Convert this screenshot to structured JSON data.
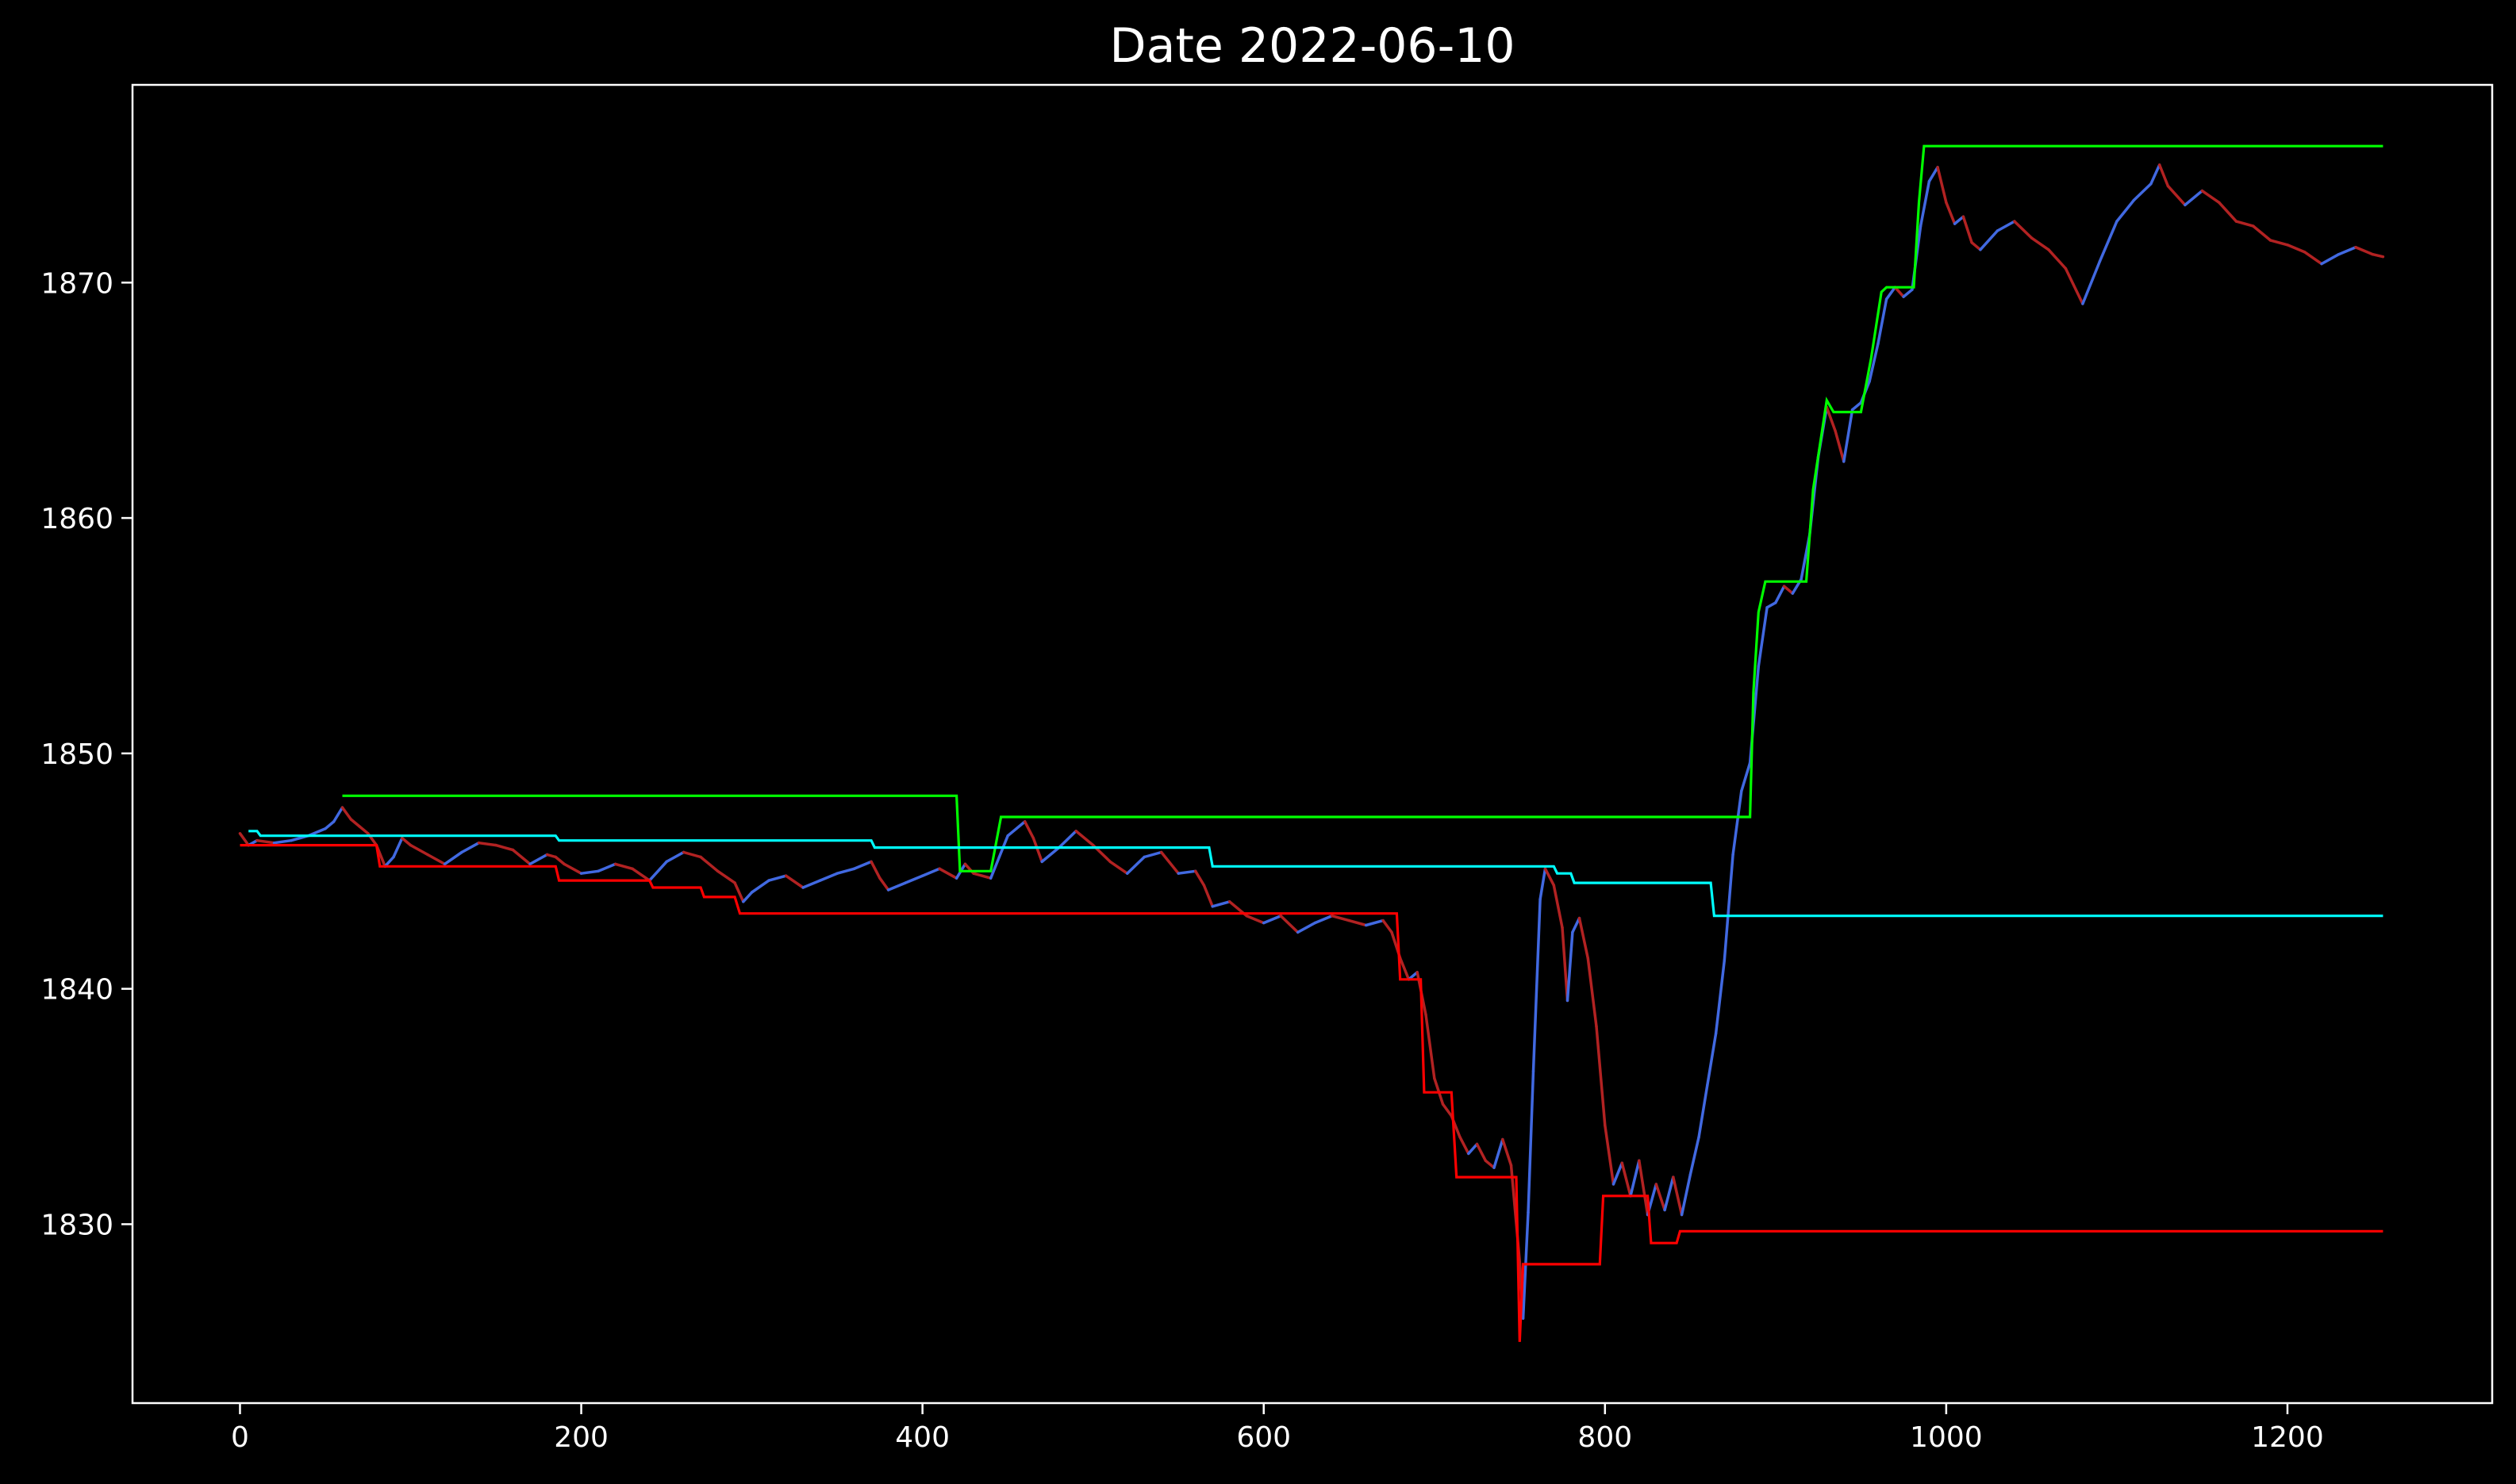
{
  "chart_data": {
    "type": "line",
    "title": "Date 2022-06-10",
    "xlabel": "",
    "ylabel": "",
    "xlim": [
      -63,
      1320
    ],
    "ylim": [
      1822.4,
      1878.4
    ],
    "grid": false,
    "background": "#000000",
    "axis_color": "#ffffff",
    "x_ticks": [
      0,
      200,
      400,
      600,
      800,
      1000,
      1200
    ],
    "y_ticks": [
      1830,
      1840,
      1850,
      1860,
      1870
    ],
    "series": [
      {
        "role": "price",
        "color_up": "#4169e1",
        "color_down": "#b22222",
        "points": [
          [
            0,
            1846.6
          ],
          [
            5,
            1846.1
          ],
          [
            10,
            1846.3
          ],
          [
            20,
            1846.2
          ],
          [
            30,
            1846.3
          ],
          [
            40,
            1846.5
          ],
          [
            50,
            1846.8
          ],
          [
            55,
            1847.1
          ],
          [
            60,
            1847.7
          ],
          [
            65,
            1847.2
          ],
          [
            70,
            1846.9
          ],
          [
            75,
            1846.6
          ],
          [
            80,
            1846.1
          ],
          [
            85,
            1845.2
          ],
          [
            90,
            1845.6
          ],
          [
            95,
            1846.4
          ],
          [
            100,
            1846.1
          ],
          [
            110,
            1845.7
          ],
          [
            120,
            1845.3
          ],
          [
            130,
            1845.8
          ],
          [
            140,
            1846.2
          ],
          [
            150,
            1846.1
          ],
          [
            160,
            1845.9
          ],
          [
            170,
            1845.3
          ],
          [
            180,
            1845.7
          ],
          [
            185,
            1845.6
          ],
          [
            190,
            1845.3
          ],
          [
            200,
            1844.9
          ],
          [
            210,
            1845.0
          ],
          [
            220,
            1845.3
          ],
          [
            230,
            1845.1
          ],
          [
            240,
            1844.6
          ],
          [
            250,
            1845.4
          ],
          [
            260,
            1845.8
          ],
          [
            270,
            1845.6
          ],
          [
            280,
            1845.0
          ],
          [
            290,
            1844.5
          ],
          [
            295,
            1843.7
          ],
          [
            300,
            1844.1
          ],
          [
            310,
            1844.6
          ],
          [
            320,
            1844.8
          ],
          [
            330,
            1844.3
          ],
          [
            340,
            1844.6
          ],
          [
            350,
            1844.9
          ],
          [
            360,
            1845.1
          ],
          [
            370,
            1845.4
          ],
          [
            375,
            1844.7
          ],
          [
            380,
            1844.2
          ],
          [
            390,
            1844.5
          ],
          [
            400,
            1844.8
          ],
          [
            410,
            1845.1
          ],
          [
            420,
            1844.7
          ],
          [
            425,
            1845.3
          ],
          [
            430,
            1844.9
          ],
          [
            440,
            1844.7
          ],
          [
            445,
            1845.6
          ],
          [
            450,
            1846.5
          ],
          [
            460,
            1847.1
          ],
          [
            465,
            1846.4
          ],
          [
            470,
            1845.4
          ],
          [
            480,
            1846.0
          ],
          [
            490,
            1846.7
          ],
          [
            500,
            1846.1
          ],
          [
            510,
            1845.4
          ],
          [
            520,
            1844.9
          ],
          [
            530,
            1845.6
          ],
          [
            540,
            1845.8
          ],
          [
            550,
            1844.9
          ],
          [
            560,
            1845.0
          ],
          [
            565,
            1844.4
          ],
          [
            570,
            1843.5
          ],
          [
            580,
            1843.7
          ],
          [
            590,
            1843.1
          ],
          [
            600,
            1842.8
          ],
          [
            610,
            1843.1
          ],
          [
            620,
            1842.4
          ],
          [
            630,
            1842.8
          ],
          [
            640,
            1843.1
          ],
          [
            650,
            1842.9
          ],
          [
            660,
            1842.7
          ],
          [
            670,
            1842.9
          ],
          [
            675,
            1842.4
          ],
          [
            680,
            1841.3
          ],
          [
            685,
            1840.4
          ],
          [
            690,
            1840.7
          ],
          [
            695,
            1838.9
          ],
          [
            700,
            1836.2
          ],
          [
            705,
            1835.1
          ],
          [
            710,
            1834.6
          ],
          [
            715,
            1833.7
          ],
          [
            720,
            1833.0
          ],
          [
            725,
            1833.4
          ],
          [
            730,
            1832.7
          ],
          [
            735,
            1832.4
          ],
          [
            740,
            1833.6
          ],
          [
            745,
            1832.5
          ],
          [
            750,
            1828.4
          ],
          [
            752,
            1826.0
          ],
          [
            755,
            1830.5
          ],
          [
            758,
            1836.5
          ],
          [
            762,
            1843.8
          ],
          [
            765,
            1845.1
          ],
          [
            770,
            1844.4
          ],
          [
            775,
            1842.6
          ],
          [
            778,
            1839.5
          ],
          [
            781,
            1842.4
          ],
          [
            785,
            1843.0
          ],
          [
            790,
            1841.3
          ],
          [
            795,
            1838.4
          ],
          [
            800,
            1834.2
          ],
          [
            805,
            1831.7
          ],
          [
            810,
            1832.6
          ],
          [
            815,
            1831.2
          ],
          [
            820,
            1832.7
          ],
          [
            825,
            1830.4
          ],
          [
            830,
            1831.7
          ],
          [
            835,
            1830.6
          ],
          [
            840,
            1832.0
          ],
          [
            845,
            1830.4
          ],
          [
            850,
            1832.1
          ],
          [
            855,
            1833.7
          ],
          [
            860,
            1835.9
          ],
          [
            865,
            1838.1
          ],
          [
            870,
            1841.2
          ],
          [
            875,
            1845.7
          ],
          [
            880,
            1848.4
          ],
          [
            885,
            1849.6
          ],
          [
            890,
            1853.7
          ],
          [
            895,
            1856.2
          ],
          [
            900,
            1856.4
          ],
          [
            905,
            1857.1
          ],
          [
            910,
            1856.8
          ],
          [
            915,
            1857.4
          ],
          [
            920,
            1859.3
          ],
          [
            925,
            1862.6
          ],
          [
            930,
            1864.7
          ],
          [
            935,
            1863.7
          ],
          [
            940,
            1862.4
          ],
          [
            945,
            1864.6
          ],
          [
            950,
            1864.9
          ],
          [
            955,
            1865.8
          ],
          [
            960,
            1867.4
          ],
          [
            965,
            1869.3
          ],
          [
            970,
            1869.8
          ],
          [
            975,
            1869.4
          ],
          [
            980,
            1869.7
          ],
          [
            985,
            1872.4
          ],
          [
            990,
            1874.3
          ],
          [
            995,
            1874.9
          ],
          [
            1000,
            1873.4
          ],
          [
            1005,
            1872.5
          ],
          [
            1010,
            1872.8
          ],
          [
            1015,
            1871.7
          ],
          [
            1020,
            1871.4
          ],
          [
            1030,
            1872.2
          ],
          [
            1040,
            1872.6
          ],
          [
            1050,
            1871.9
          ],
          [
            1060,
            1871.4
          ],
          [
            1070,
            1870.6
          ],
          [
            1080,
            1869.1
          ],
          [
            1090,
            1870.9
          ],
          [
            1100,
            1872.6
          ],
          [
            1110,
            1873.5
          ],
          [
            1120,
            1874.2
          ],
          [
            1125,
            1875.0
          ],
          [
            1130,
            1874.1
          ],
          [
            1140,
            1873.3
          ],
          [
            1150,
            1873.9
          ],
          [
            1160,
            1873.4
          ],
          [
            1170,
            1872.6
          ],
          [
            1180,
            1872.4
          ],
          [
            1190,
            1871.8
          ],
          [
            1200,
            1871.6
          ],
          [
            1210,
            1871.3
          ],
          [
            1220,
            1870.8
          ],
          [
            1230,
            1871.2
          ],
          [
            1240,
            1871.5
          ],
          [
            1250,
            1871.2
          ],
          [
            1256,
            1871.1
          ]
        ]
      },
      {
        "role": "running-max",
        "color": "#00ff00",
        "points": [
          [
            60,
            1848.2
          ],
          [
            420,
            1848.2
          ],
          [
            422,
            1845.0
          ],
          [
            440,
            1845.0
          ],
          [
            446,
            1847.3
          ],
          [
            885,
            1847.3
          ],
          [
            887,
            1852.6
          ],
          [
            890,
            1856.0
          ],
          [
            894,
            1857.3
          ],
          [
            918,
            1857.3
          ],
          [
            922,
            1861.2
          ],
          [
            930,
            1865.0
          ],
          [
            934,
            1864.5
          ],
          [
            950,
            1864.5
          ],
          [
            956,
            1866.8
          ],
          [
            962,
            1869.6
          ],
          [
            965,
            1869.8
          ],
          [
            981,
            1869.8
          ],
          [
            984,
            1873.4
          ],
          [
            987,
            1875.8
          ],
          [
            1256,
            1875.8
          ]
        ]
      },
      {
        "role": "running-min",
        "color": "#ff0000",
        "points": [
          [
            0,
            1846.1
          ],
          [
            80,
            1846.1
          ],
          [
            82,
            1845.2
          ],
          [
            185,
            1845.2
          ],
          [
            187,
            1844.6
          ],
          [
            240,
            1844.6
          ],
          [
            242,
            1844.3
          ],
          [
            270,
            1844.3
          ],
          [
            272,
            1843.9
          ],
          [
            290,
            1843.9
          ],
          [
            293,
            1843.2
          ],
          [
            678,
            1843.2
          ],
          [
            680,
            1840.4
          ],
          [
            692,
            1840.4
          ],
          [
            694,
            1835.6
          ],
          [
            710,
            1835.6
          ],
          [
            713,
            1832.0
          ],
          [
            748,
            1832.0
          ],
          [
            750,
            1825.0
          ],
          [
            752,
            1828.3
          ],
          [
            797,
            1828.3
          ],
          [
            799,
            1831.2
          ],
          [
            825,
            1831.2
          ],
          [
            827,
            1829.2
          ],
          [
            842,
            1829.2
          ],
          [
            844,
            1829.7
          ],
          [
            1256,
            1829.7
          ]
        ]
      },
      {
        "role": "average",
        "color": "#00ffff",
        "points": [
          [
            5,
            1846.7
          ],
          [
            10,
            1846.7
          ],
          [
            12,
            1846.5
          ],
          [
            185,
            1846.5
          ],
          [
            187,
            1846.3
          ],
          [
            370,
            1846.3
          ],
          [
            372,
            1846.0
          ],
          [
            568,
            1846.0
          ],
          [
            570,
            1845.2
          ],
          [
            770,
            1845.2
          ],
          [
            772,
            1844.9
          ],
          [
            780,
            1844.9
          ],
          [
            782,
            1844.5
          ],
          [
            862,
            1844.5
          ],
          [
            864,
            1843.1
          ],
          [
            1256,
            1843.1
          ]
        ]
      }
    ]
  }
}
